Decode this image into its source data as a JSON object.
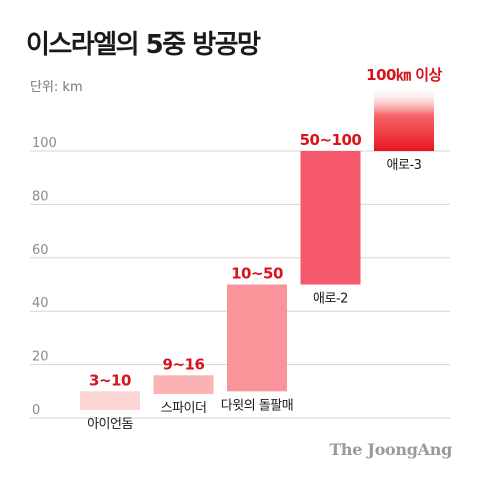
{
  "chart_data": {
    "type": "bar",
    "title": "이스라엘의 5중 방공망",
    "unit_label": "단위: km",
    "categories": [
      "아이언돔",
      "스파이더",
      "다윗의 돌팔매",
      "애로-2",
      "애로-3"
    ],
    "ranges": [
      {
        "low": 3,
        "high": 10,
        "label": "3~10"
      },
      {
        "low": 9,
        "high": 16,
        "label": "9~16"
      },
      {
        "low": 10,
        "high": 50,
        "label": "10~50"
      },
      {
        "low": 50,
        "high": 100,
        "label": "50~100"
      },
      {
        "low": 100,
        "high": null,
        "label": "100㎞ 이상"
      }
    ],
    "y_ticks": [
      0,
      20,
      40,
      60,
      80,
      100
    ],
    "ylim": [
      0,
      100
    ],
    "grid": true,
    "colors": [
      "#fcd5d5",
      "#fbb2b4",
      "#f8949a",
      "#f4586a",
      "#e8141c"
    ]
  },
  "source": "The JoongAng"
}
